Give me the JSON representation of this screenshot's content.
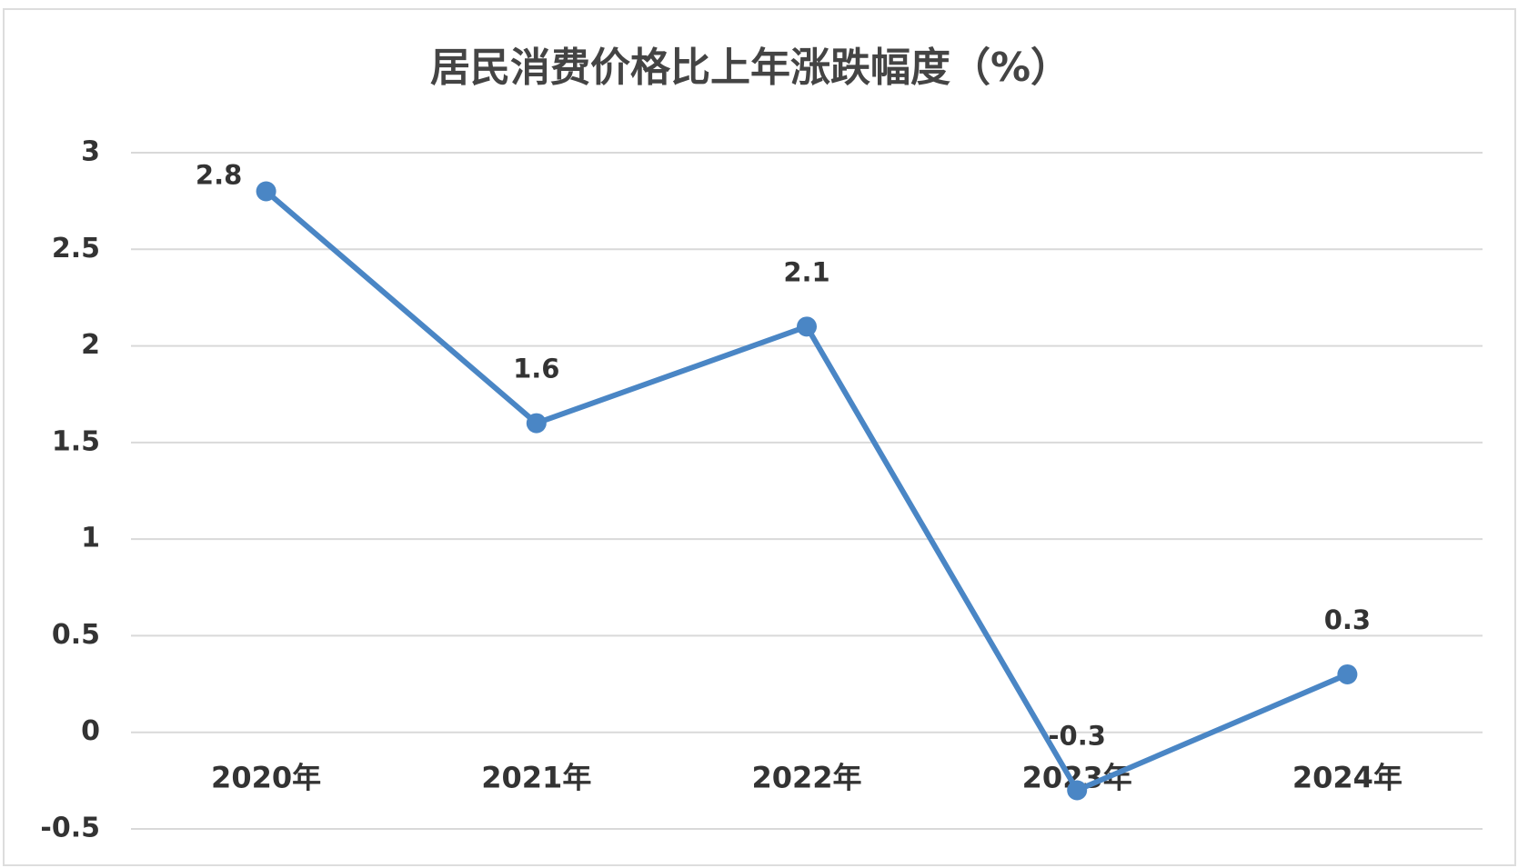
{
  "chart_data": {
    "type": "line",
    "title": "居民消费价格比上年涨跌幅度（%）",
    "categories": [
      "2020年",
      "2021年",
      "2022年",
      "2023年",
      "2024年"
    ],
    "values": [
      2.8,
      1.6,
      2.1,
      -0.3,
      0.3
    ],
    "color": "#4a86c5",
    "ylim": [
      -0.5,
      3
    ],
    "yticks": [
      -0.5,
      0,
      0.5,
      1,
      1.5,
      2,
      2.5,
      3
    ],
    "grid": true
  }
}
